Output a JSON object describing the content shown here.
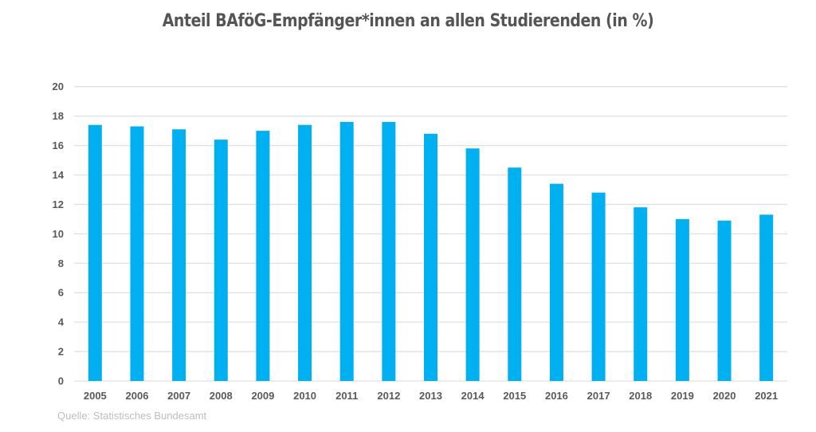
{
  "chart_data": {
    "type": "bar",
    "title": "Anteil BAföG-Empfänger*innen an allen Studierenden (in %)",
    "source": "Quelle: Statistisches Bundesamt",
    "categories": [
      "2005",
      "2006",
      "2007",
      "2008",
      "2009",
      "2010",
      "2011",
      "2012",
      "2013",
      "2014",
      "2015",
      "2016",
      "2017",
      "2018",
      "2019",
      "2020",
      "2021"
    ],
    "values": [
      17.4,
      17.3,
      17.1,
      16.4,
      17.0,
      17.4,
      17.6,
      17.6,
      16.8,
      15.8,
      14.5,
      13.4,
      12.8,
      11.8,
      11.0,
      10.9,
      11.3
    ],
    "ylim": [
      0,
      20
    ],
    "yticks": [
      0,
      2,
      4,
      6,
      8,
      10,
      12,
      14,
      16,
      18,
      20
    ],
    "grid": true,
    "legend": "none",
    "bar_color": "#00b0f0",
    "grid_color": "#e0e0e0"
  }
}
